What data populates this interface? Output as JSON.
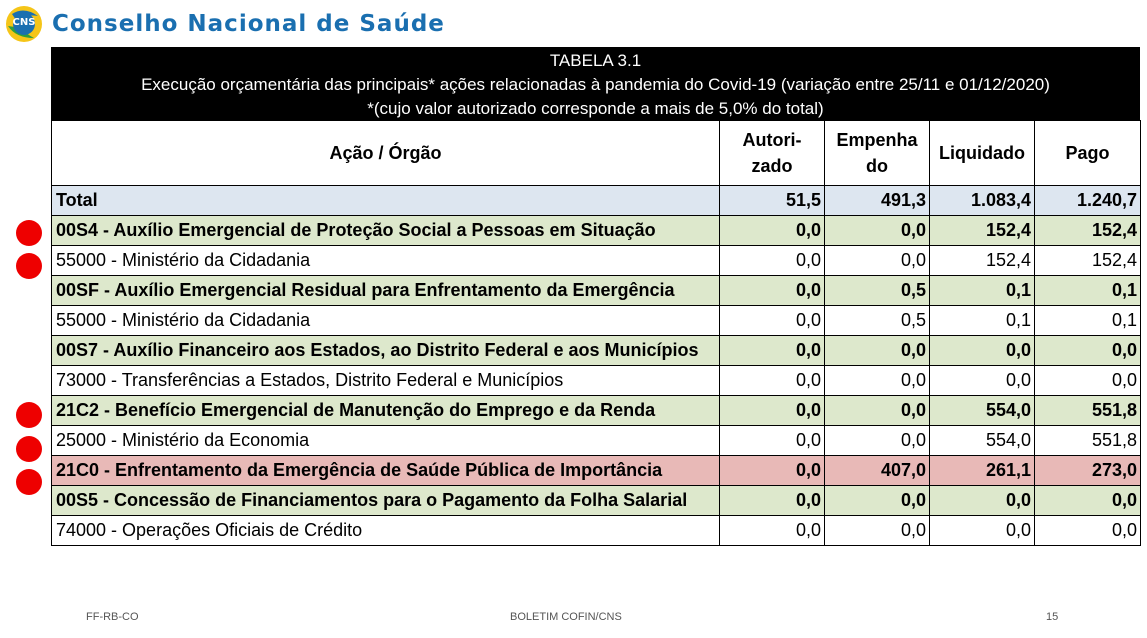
{
  "header": {
    "logo_text": "CNS",
    "org_name": "Conselho Nacional de Saúde"
  },
  "table": {
    "caption_line1": "TABELA 3.1",
    "caption_line2": "Execução orçamentária das principais* ações relacionadas à pandemia do Covid-19 (variação entre 25/11 e 01/12/2020)",
    "caption_line3": "*(cujo valor autorizado corresponde a mais de 5,0% do total)",
    "columns": {
      "acao": "Ação / Órgão",
      "autorizado_1": "Autori-",
      "autorizado_2": "zado",
      "empenhado_1": "Empenha",
      "empenhado_2": "do",
      "liquidado": "Liquidado",
      "pago": "Pago"
    },
    "rows": [
      {
        "label": "Total",
        "autorizado": "51,5",
        "empenhado": "491,3",
        "liquidado": "1.083,4",
        "pago": "1.240,7"
      },
      {
        "label": "00S4 - Auxílio Emergencial de Proteção Social a Pessoas em Situação",
        "autorizado": "0,0",
        "empenhado": "0,0",
        "liquidado": "152,4",
        "pago": "152,4"
      },
      {
        "label": "55000 - Ministério da Cidadania",
        "autorizado": "0,0",
        "empenhado": "0,0",
        "liquidado": "152,4",
        "pago": "152,4"
      },
      {
        "label": "00SF - Auxílio Emergencial Residual para Enfrentamento da Emergência",
        "autorizado": "0,0",
        "empenhado": "0,5",
        "liquidado": "0,1",
        "pago": "0,1"
      },
      {
        "label": "55000 - Ministério da Cidadania",
        "autorizado": "0,0",
        "empenhado": "0,5",
        "liquidado": "0,1",
        "pago": "0,1"
      },
      {
        "label": "00S7 - Auxílio Financeiro aos Estados, ao Distrito Federal e aos Municípios",
        "autorizado": "0,0",
        "empenhado": "0,0",
        "liquidado": "0,0",
        "pago": "0,0"
      },
      {
        "label": "73000 - Transferências a Estados, Distrito Federal e Municípios",
        "autorizado": "0,0",
        "empenhado": "0,0",
        "liquidado": "0,0",
        "pago": "0,0"
      },
      {
        "label": "21C2 - Benefício Emergencial de Manutenção do Emprego e da Renda",
        "autorizado": "0,0",
        "empenhado": "0,0",
        "liquidado": "554,0",
        "pago": "551,8"
      },
      {
        "label": "25000 - Ministério da Economia",
        "autorizado": "0,0",
        "empenhado": "0,0",
        "liquidado": "554,0",
        "pago": "551,8"
      },
      {
        "label": "21C0 - Enfrentamento da Emergência de Saúde Pública de Importância",
        "autorizado": "0,0",
        "empenhado": "407,0",
        "liquidado": "261,1",
        "pago": "273,0"
      },
      {
        "label": "00S5 - Concessão de Financiamentos para o Pagamento da Folha Salarial",
        "autorizado": "0,0",
        "empenhado": "0,0",
        "liquidado": "0,0",
        "pago": "0,0"
      },
      {
        "label": "74000 - Operações Oficiais de Crédito",
        "autorizado": "0,0",
        "empenhado": "0,0",
        "liquidado": "0,0",
        "pago": "0,0"
      }
    ]
  },
  "colors": {
    "title_blue": "#1a6fb0",
    "total_bg": "#dde6f0",
    "action_bg": "#dde8cc",
    "highlight_bg": "#e8b9b7",
    "marker_red": "#ee0000"
  },
  "footer": {
    "left": "FF-RB-CO",
    "center": "BOLETIM COFIN/CNS",
    "page": "15"
  }
}
